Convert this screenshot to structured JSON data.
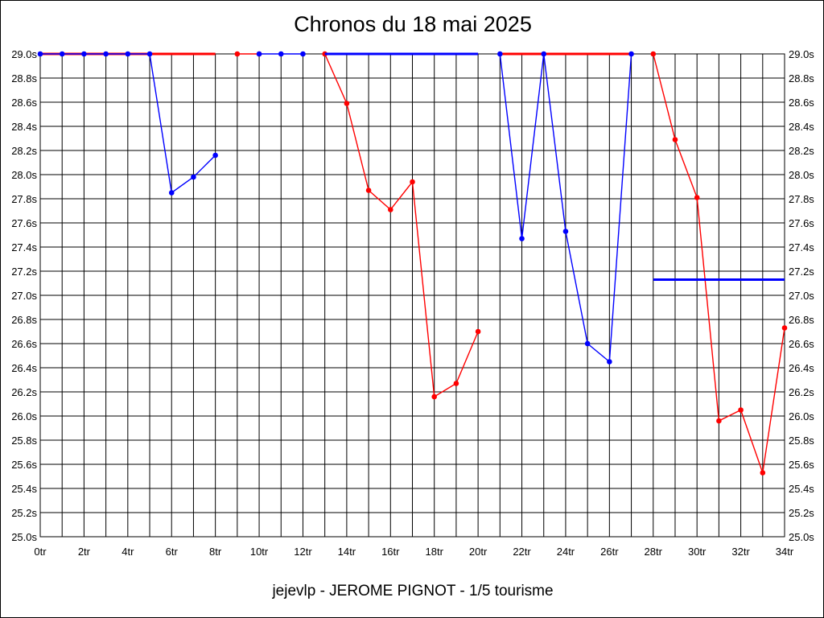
{
  "chart_data": {
    "type": "line",
    "title": "Chronos du 18 mai 2025",
    "subtitle": "jejevlp - JEROME PIGNOT - 1/5 tourisme",
    "xlabel": "",
    "ylabel": "",
    "xlim": [
      0,
      34
    ],
    "ylim": [
      25.0,
      29.0
    ],
    "x_ticks": [
      0,
      2,
      4,
      6,
      8,
      10,
      12,
      14,
      16,
      18,
      20,
      22,
      24,
      26,
      28,
      30,
      32,
      34
    ],
    "x_tick_labels": [
      "0tr",
      "2tr",
      "4tr",
      "6tr",
      "8tr",
      "10tr",
      "12tr",
      "14tr",
      "16tr",
      "18tr",
      "20tr",
      "22tr",
      "24tr",
      "26tr",
      "28tr",
      "30tr",
      "32tr",
      "34tr"
    ],
    "y_ticks": [
      25.0,
      25.2,
      25.4,
      25.6,
      25.8,
      26.0,
      26.2,
      26.4,
      26.6,
      26.8,
      27.0,
      27.2,
      27.4,
      27.6,
      27.8,
      28.0,
      28.2,
      28.4,
      28.6,
      28.8,
      29.0
    ],
    "y_tick_labels": [
      "25.0s",
      "25.2s",
      "25.4s",
      "25.6s",
      "25.8s",
      "26.0s",
      "26.2s",
      "26.4s",
      "26.6s",
      "26.8s",
      "27.0s",
      "27.2s",
      "27.4s",
      "27.6s",
      "27.8s",
      "28.0s",
      "28.2s",
      "28.4s",
      "28.6s",
      "28.8s",
      "29.0s"
    ],
    "grid": true,
    "legend": "none",
    "series": [
      {
        "color": "#ff0000",
        "segments": [
          {
            "x": [
              0,
              8
            ],
            "y": [
              29.0,
              29.0
            ],
            "markers": false
          },
          {
            "x": [
              9,
              10
            ],
            "y": [
              29.0,
              29.0
            ],
            "markers": true
          },
          {
            "x": [
              13,
              14,
              15,
              16,
              17,
              18,
              19,
              20
            ],
            "y": [
              29.0,
              28.59,
              27.87,
              27.71,
              27.94,
              26.16,
              26.27,
              26.7
            ],
            "markers": true
          },
          {
            "x": [
              21,
              27
            ],
            "y": [
              29.0,
              29.0
            ],
            "markers": false
          },
          {
            "x": [
              28,
              29,
              30,
              31,
              32,
              33,
              34
            ],
            "y": [
              29.0,
              28.29,
              27.81,
              25.96,
              26.05,
              25.53,
              26.73
            ],
            "markers": true
          }
        ]
      },
      {
        "color": "#0000ff",
        "segments": [
          {
            "x": [
              0,
              1,
              2,
              3,
              4,
              5,
              6,
              7,
              8
            ],
            "y": [
              29.0,
              29.0,
              29.0,
              29.0,
              29.0,
              29.0,
              27.85,
              27.98,
              28.16
            ],
            "markers": true
          },
          {
            "x": [
              10,
              11,
              12
            ],
            "y": [
              29.0,
              29.0,
              29.0
            ],
            "markers": true
          },
          {
            "x": [
              13,
              20
            ],
            "y": [
              29.0,
              29.0
            ],
            "markers": false
          },
          {
            "x": [
              21,
              22,
              23,
              24,
              25,
              26,
              27
            ],
            "y": [
              29.0,
              27.47,
              29.0,
              27.53,
              26.6,
              26.45,
              29.0
            ],
            "markers": true
          },
          {
            "x": [
              28,
              34
            ],
            "y": [
              27.13,
              27.13
            ],
            "markers": false
          }
        ]
      }
    ]
  }
}
